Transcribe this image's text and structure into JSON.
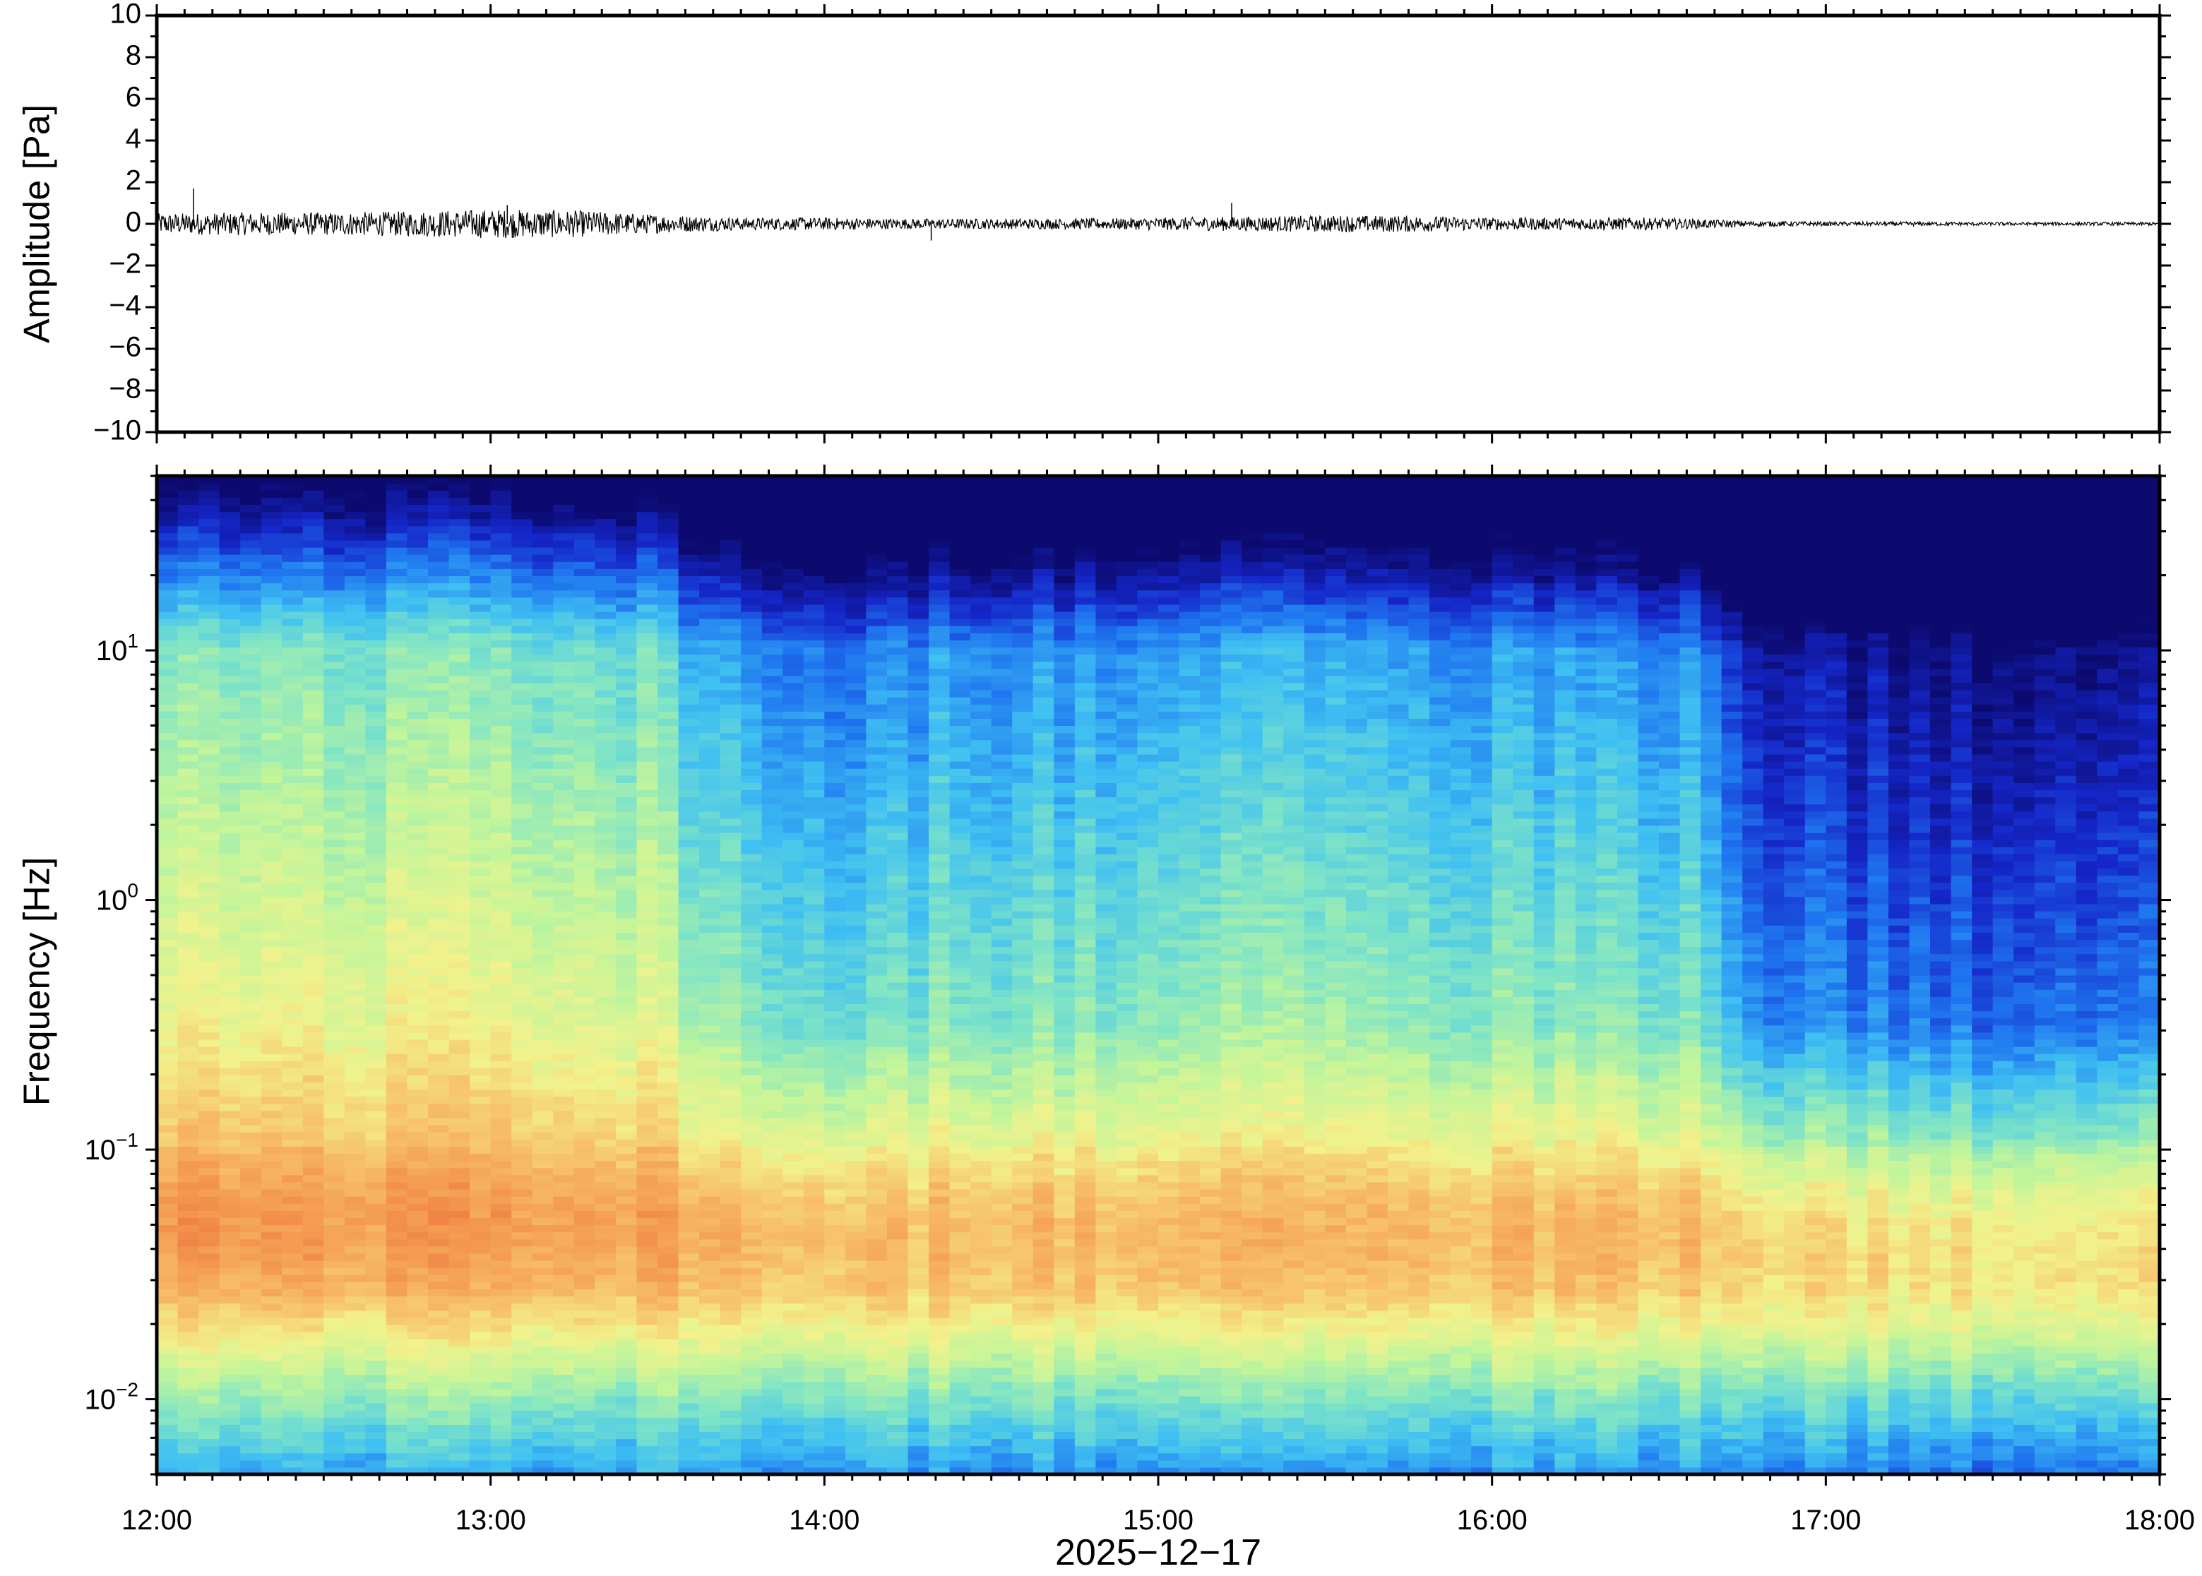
{
  "chart_data": [
    {
      "type": "line",
      "name": "waveform",
      "ylabel": "Amplitude [Pa]",
      "ylim": [
        -10,
        10
      ],
      "yticks": [
        10,
        8,
        6,
        4,
        2,
        0,
        -2,
        -4,
        -6,
        -8,
        -10
      ],
      "ytick_labels": [
        "10",
        "8",
        "6",
        "4",
        "2",
        "0",
        "−2",
        "−4",
        "−6",
        "−8",
        "−10"
      ],
      "xlim_hours": [
        12,
        18
      ],
      "envelope": {
        "t_hours": [
          12.0,
          12.25,
          12.5,
          12.75,
          13.0,
          13.25,
          13.5,
          13.75,
          14.0,
          14.25,
          14.5,
          14.75,
          15.0,
          15.25,
          15.5,
          15.75,
          16.0,
          16.25,
          16.5,
          16.75,
          17.0,
          17.25,
          17.5,
          17.75,
          18.0
        ],
        "amplitude_pa": [
          0.5,
          0.55,
          0.55,
          0.6,
          0.7,
          0.65,
          0.45,
          0.3,
          0.3,
          0.25,
          0.25,
          0.25,
          0.3,
          0.35,
          0.4,
          0.4,
          0.3,
          0.3,
          0.3,
          0.15,
          0.1,
          0.1,
          0.08,
          0.08,
          0.08
        ]
      },
      "spikes": [
        {
          "t": 12.11,
          "v": 1.7
        },
        {
          "t": 13.05,
          "v": 0.9
        },
        {
          "t": 15.22,
          "v": 1.0
        },
        {
          "t": 14.32,
          "v": -0.8
        }
      ]
    },
    {
      "type": "heatmap",
      "name": "spectrogram",
      "xlabel": "2025−12−17",
      "ylabel": "Frequency [Hz]",
      "y_scale": "log",
      "ylim_hz": [
        0.005,
        50
      ],
      "yticks_hz": [
        0.01,
        0.1,
        1,
        10
      ],
      "ytick_labels": [
        {
          "base": "10",
          "exp": "−2"
        },
        {
          "base": "10",
          "exp": "−1"
        },
        {
          "base": "10",
          "exp": "0"
        },
        {
          "base": "10",
          "exp": "1"
        }
      ],
      "xlim_hours": [
        12,
        18
      ],
      "xticks": [
        "12:00",
        "13:00",
        "14:00",
        "15:00",
        "16:00",
        "17:00",
        "18:00"
      ],
      "colormap": [
        "#0c0a6e",
        "#1526c8",
        "#1f76f0",
        "#3fc0f2",
        "#7ee4c7",
        "#c3f59a",
        "#f2f28c",
        "#f7c26a",
        "#f49a50",
        "#ea6c3c"
      ],
      "energy_profile": {
        "t_hours": [
          12.0,
          12.5,
          13.0,
          13.5,
          13.6,
          13.8,
          14.0,
          14.1,
          14.3,
          14.6,
          15.0,
          15.4,
          15.6,
          16.0,
          16.4,
          16.65,
          16.75,
          17.0,
          17.5,
          18.0
        ],
        "level": [
          1.0,
          1.0,
          1.0,
          0.95,
          0.78,
          0.72,
          0.66,
          0.62,
          0.72,
          0.72,
          0.75,
          0.82,
          0.78,
          0.74,
          0.72,
          0.7,
          0.42,
          0.4,
          0.36,
          0.38
        ]
      }
    }
  ]
}
